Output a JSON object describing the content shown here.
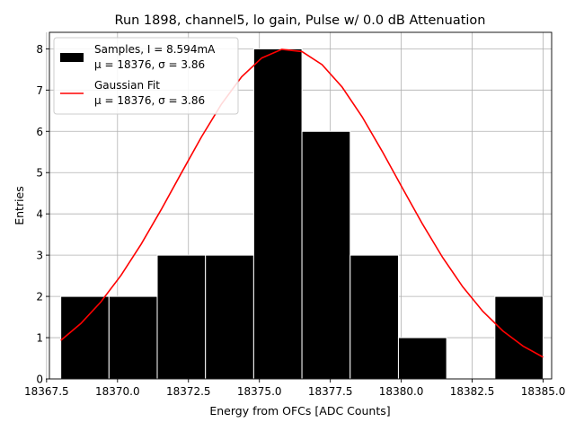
{
  "chart_data": {
    "type": "bar",
    "title": "Run 1898, channel5, lo gain, Pulse w/ 0.0 dB Attenuation",
    "xlabel": "Energy from OFCs [ADC Counts]",
    "ylabel": "Entries",
    "xlim": [
      18367.6,
      18385.3
    ],
    "ylim": [
      0,
      8.4
    ],
    "grid": true,
    "legend_position": "upper-left",
    "xticks": [
      18367.5,
      18370.0,
      18372.5,
      18375.0,
      18377.5,
      18380.0,
      18382.5,
      18385.0
    ],
    "xtick_labels": [
      "18367.5",
      "18370.0",
      "18372.5",
      "18375.0",
      "18377.5",
      "18380.0",
      "18382.5",
      "18385.0"
    ],
    "yticks": [
      0,
      1,
      2,
      3,
      4,
      5,
      6,
      7,
      8
    ],
    "ytick_labels": [
      "0",
      "1",
      "2",
      "3",
      "4",
      "5",
      "6",
      "7",
      "8"
    ],
    "histogram": {
      "bin_edges": [
        18368.0,
        18369.7,
        18371.4,
        18373.1,
        18374.8,
        18376.5,
        18378.2,
        18379.9,
        18381.6,
        18383.3,
        18385.0
      ],
      "counts": [
        2,
        2,
        3,
        3,
        8,
        6,
        3,
        1,
        0,
        2
      ],
      "color": "#000000"
    },
    "fit": {
      "type": "gaussian",
      "mu": 18376,
      "sigma": 3.86,
      "amplitude": 8.0,
      "x_range": [
        18368.0,
        18385.0
      ],
      "color": "#ff0000"
    },
    "legend": [
      {
        "line1": "Samples, I = 8.594mA",
        "line2": "μ = 18376, σ = 3.86",
        "marker": "patch",
        "color": "#000000"
      },
      {
        "line1": "Gaussian Fit",
        "line2": "μ = 18376, σ = 3.86",
        "marker": "line",
        "color": "#ff0000"
      }
    ]
  }
}
